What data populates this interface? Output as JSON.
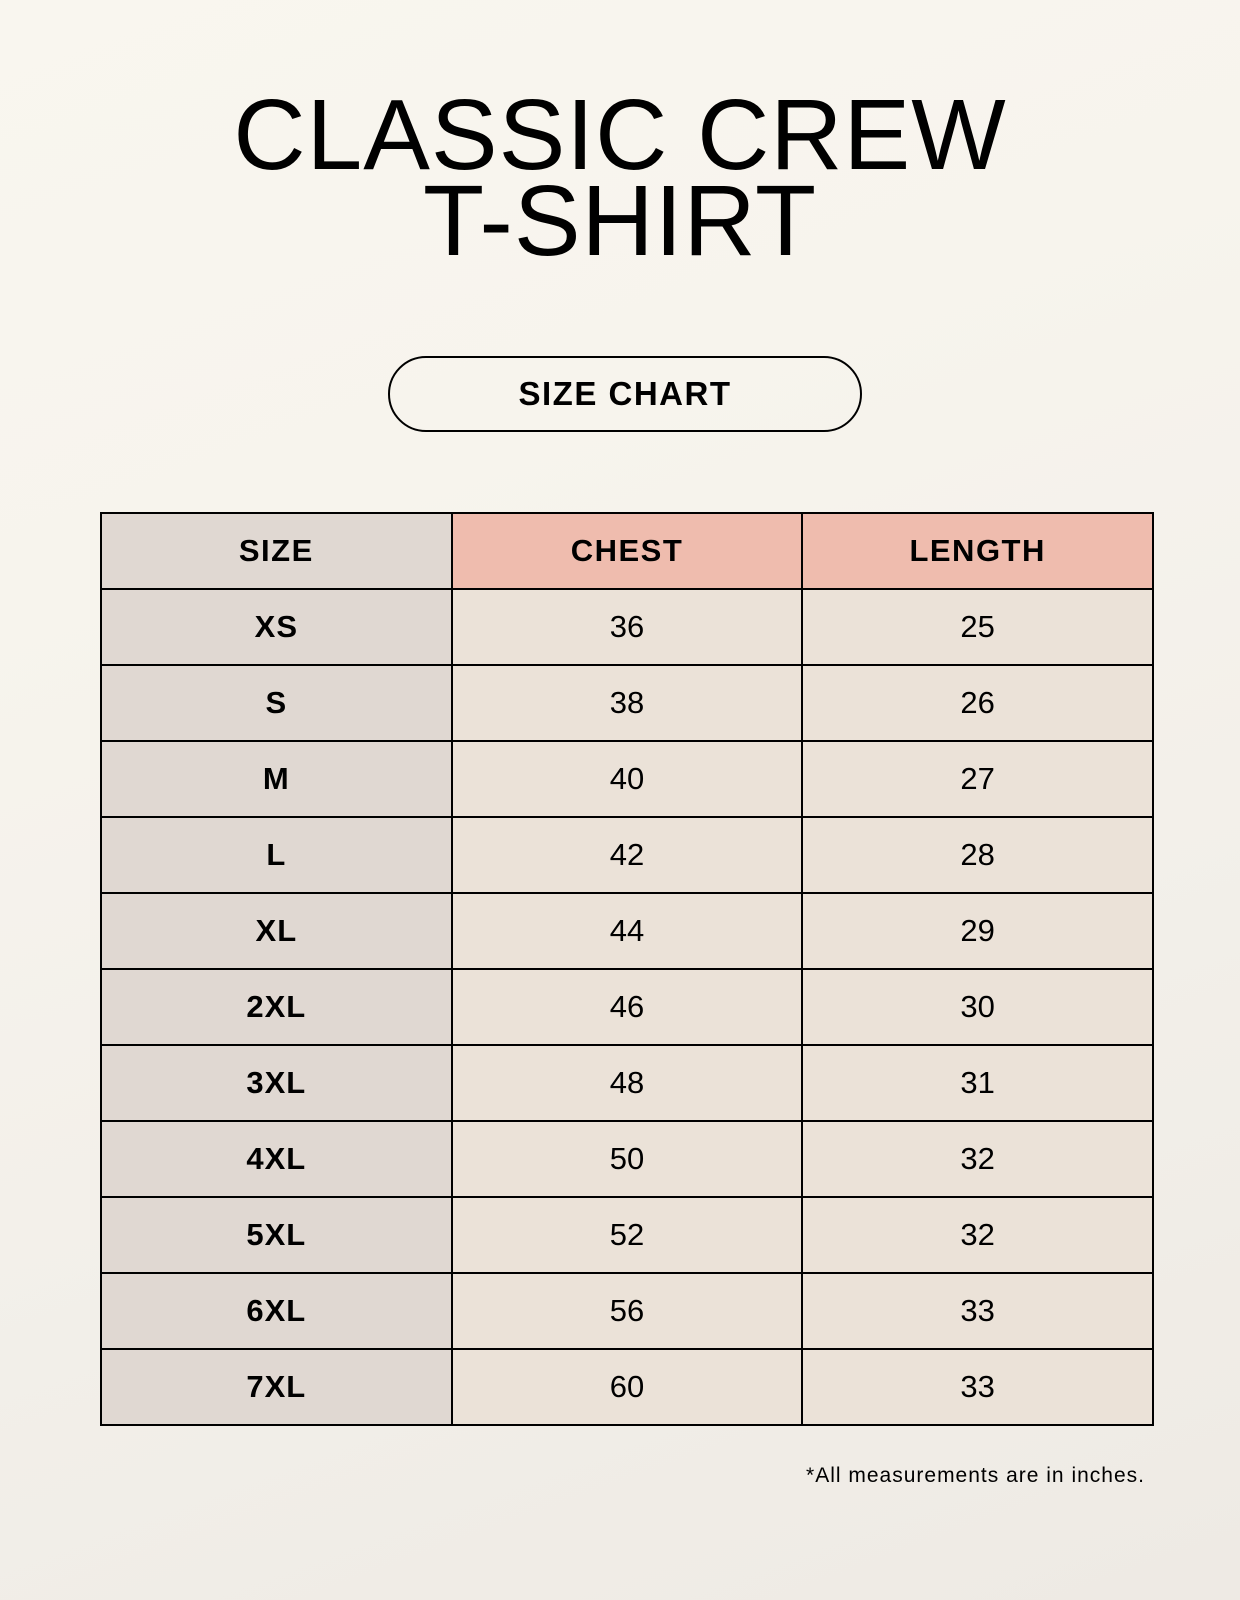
{
  "title": {
    "line1": "CLASSIC CREW",
    "line2": "T-SHIRT"
  },
  "badge": "SIZE CHART",
  "table": {
    "headers": [
      "SIZE",
      "CHEST",
      "LENGTH"
    ],
    "rows": [
      [
        "XS",
        "36",
        "25"
      ],
      [
        "S",
        "38",
        "26"
      ],
      [
        "M",
        "40",
        "27"
      ],
      [
        "L",
        "42",
        "28"
      ],
      [
        "XL",
        "44",
        "29"
      ],
      [
        "2XL",
        "46",
        "30"
      ],
      [
        "3XL",
        "48",
        "31"
      ],
      [
        "4XL",
        "50",
        "32"
      ],
      [
        "5XL",
        "52",
        "32"
      ],
      [
        "6XL",
        "56",
        "33"
      ],
      [
        "7XL",
        "60",
        "33"
      ]
    ]
  },
  "footnote": "*All measurements are in inches.",
  "colors": {
    "size_column": "#e0d8d2",
    "header_accent": "#efbcae",
    "body_cells": "#ebe2d8",
    "background": "#f8f5ee"
  }
}
